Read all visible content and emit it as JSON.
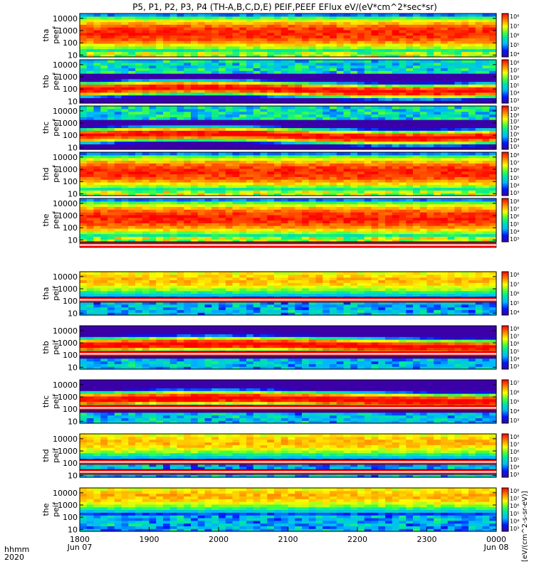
{
  "title": "P5, P1, P2, P3, P4 (TH-A,B,C,D,E) PEIF,PEEF EFlux eV/(eV*cm^2*sec*sr)",
  "colorbar_unit": "[eV/(cm^2-s-sr-eV)]",
  "chart_data": {
    "type": "heatmap",
    "x_axis": {
      "ticks": [
        {
          "label": "1800",
          "date": "Jun 07"
        },
        {
          "label": "1900",
          "date": ""
        },
        {
          "label": "2000",
          "date": ""
        },
        {
          "label": "2100",
          "date": ""
        },
        {
          "label": "2200",
          "date": ""
        },
        {
          "label": "2300",
          "date": ""
        },
        {
          "label": "0000",
          "date": "Jun 08"
        }
      ],
      "corner_label": "hhmm",
      "corner_year": "2020"
    },
    "y_ticks": [
      "10000",
      "1000",
      "100",
      "10"
    ],
    "y_scale": "log",
    "ylim_eV": [
      7,
      25000
    ],
    "panels": [
      {
        "probe": "tha",
        "product": "peef",
        "colorbar_exp": [
          8,
          7,
          6,
          5,
          4
        ],
        "pattern": "electron"
      },
      {
        "probe": "thb",
        "product": "peef",
        "colorbar_exp": [
          8,
          7,
          6,
          5,
          4,
          3
        ],
        "pattern": "electron_band"
      },
      {
        "probe": "thc",
        "product": "peef",
        "colorbar_exp": [
          9,
          8,
          7,
          6,
          5,
          4,
          3
        ],
        "pattern": "electron_band"
      },
      {
        "probe": "thd",
        "product": "peef",
        "colorbar_exp": [
          8,
          7,
          6,
          5,
          4,
          3
        ],
        "pattern": "electron"
      },
      {
        "probe": "the",
        "product": "peef",
        "colorbar_exp": [
          8,
          7,
          6,
          5,
          4,
          3
        ],
        "pattern": "electron"
      },
      {
        "probe": "tha",
        "product": "peif",
        "colorbar_exp": [
          8,
          7,
          6,
          5,
          4
        ],
        "pattern": "ion"
      },
      {
        "probe": "thb",
        "product": "peif",
        "colorbar_exp": [
          8,
          7,
          6,
          5,
          4,
          3
        ],
        "pattern": "ion_band"
      },
      {
        "probe": "thc",
        "product": "peif",
        "colorbar_exp": [
          7,
          6,
          5,
          4,
          3
        ],
        "pattern": "ion_band"
      },
      {
        "probe": "thd",
        "product": "peif",
        "colorbar_exp": [
          8,
          7,
          6,
          5,
          4,
          3
        ],
        "pattern": "ion"
      },
      {
        "probe": "the",
        "product": "peif",
        "colorbar_exp": [
          8,
          7,
          6,
          5,
          4,
          3
        ],
        "pattern": "ion"
      }
    ]
  }
}
